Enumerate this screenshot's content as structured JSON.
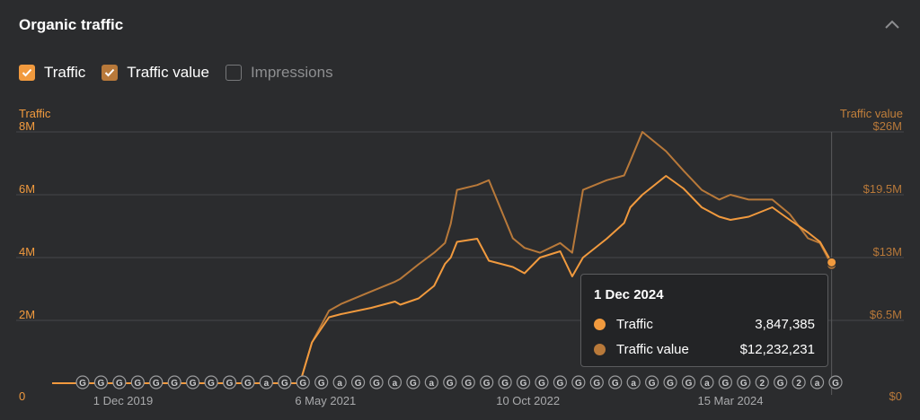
{
  "header": {
    "title": "Organic traffic"
  },
  "toggles": [
    {
      "label": "Traffic",
      "checked": true
    },
    {
      "label": "Traffic value",
      "checked": true
    },
    {
      "label": "Impressions",
      "checked": false
    }
  ],
  "colors": {
    "background": "#2b2c2e",
    "traffic": "#f19a3e",
    "traffic_value": "#b8793a",
    "grid": "#45464a",
    "annotation": "#9a9b9d"
  },
  "chart_data": {
    "type": "line",
    "left_axis_title": "Traffic",
    "right_axis_title": "Traffic value",
    "left_ticks": [
      {
        "value": 0,
        "label": "0"
      },
      {
        "value": 2000000,
        "label": "2M"
      },
      {
        "value": 4000000,
        "label": "4M"
      },
      {
        "value": 6000000,
        "label": "6M"
      },
      {
        "value": 8000000,
        "label": "8M"
      }
    ],
    "right_ticks": [
      {
        "value": 0,
        "label": "$0"
      },
      {
        "value": 6500000,
        "label": "$6.5M"
      },
      {
        "value": 13000000,
        "label": "$13M"
      },
      {
        "value": 19500000,
        "label": "$19.5M"
      },
      {
        "value": 26000000,
        "label": "$26M"
      }
    ],
    "ylim_left": [
      0,
      8000000
    ],
    "ylim_right": [
      0,
      26000000
    ],
    "x_ticks": [
      {
        "date": "2019-12-01",
        "label": "1 Dec 2019"
      },
      {
        "date": "2021-05-06",
        "label": "6 May 2021"
      },
      {
        "date": "2022-10-10",
        "label": "10 Oct 2022"
      },
      {
        "date": "2024-03-15",
        "label": "15 Mar 2024"
      }
    ],
    "xlim": [
      "2019-06-01",
      "2024-12-25"
    ],
    "grid": true,
    "series": [
      {
        "name": "Traffic",
        "axis": "left",
        "x": [
          "2019-06-01",
          "2020-06-01",
          "2021-01-01",
          "2021-03-01",
          "2021-04-01",
          "2021-05-15",
          "2021-06-15",
          "2021-09-01",
          "2021-11-01",
          "2021-11-15",
          "2022-01-01",
          "2022-02-10",
          "2022-03-10",
          "2022-03-25",
          "2022-04-10",
          "2022-06-01",
          "2022-07-01",
          "2022-09-01",
          "2022-10-01",
          "2022-11-10",
          "2023-01-01",
          "2023-02-01",
          "2023-03-01",
          "2023-05-01",
          "2023-06-15",
          "2023-07-01",
          "2023-08-01",
          "2023-10-01",
          "2023-11-15",
          "2024-01-01",
          "2024-02-15",
          "2024-03-15",
          "2024-05-01",
          "2024-07-01",
          "2024-08-15",
          "2024-10-01",
          "2024-11-01",
          "2024-12-01"
        ],
        "y": [
          0,
          0,
          0,
          0,
          1300000,
          2100000,
          2200000,
          2400000,
          2600000,
          2500000,
          2700000,
          3100000,
          3800000,
          4000000,
          4500000,
          4600000,
          3900000,
          3700000,
          3500000,
          4000000,
          4200000,
          3400000,
          4000000,
          4600000,
          5100000,
          5600000,
          6000000,
          6600000,
          6200000,
          5600000,
          5300000,
          5200000,
          5300000,
          5600000,
          5200000,
          4800000,
          4500000,
          3847385
        ]
      },
      {
        "name": "Traffic value",
        "axis": "right",
        "x": [
          "2019-06-01",
          "2020-06-01",
          "2021-01-01",
          "2021-03-01",
          "2021-04-01",
          "2021-05-15",
          "2021-06-15",
          "2021-09-01",
          "2021-11-01",
          "2021-11-15",
          "2022-01-01",
          "2022-02-10",
          "2022-03-10",
          "2022-03-25",
          "2022-04-10",
          "2022-06-01",
          "2022-07-01",
          "2022-09-01",
          "2022-10-01",
          "2022-11-10",
          "2023-01-01",
          "2023-02-01",
          "2023-03-01",
          "2023-05-01",
          "2023-06-15",
          "2023-07-01",
          "2023-08-01",
          "2023-10-01",
          "2023-11-15",
          "2024-01-01",
          "2024-02-15",
          "2024-03-15",
          "2024-05-01",
          "2024-07-01",
          "2024-08-15",
          "2024-10-01",
          "2024-11-01",
          "2024-12-01"
        ],
        "y": [
          0,
          0,
          0,
          0,
          4200000,
          7500000,
          8200000,
          9500000,
          10500000,
          10800000,
          12300000,
          13500000,
          14500000,
          16500000,
          20000000,
          20500000,
          21000000,
          15000000,
          14000000,
          13500000,
          14500000,
          13500000,
          20000000,
          21000000,
          21500000,
          23000000,
          26000000,
          24000000,
          22000000,
          20000000,
          19000000,
          19500000,
          19000000,
          19000000,
          17500000,
          15000000,
          14500000,
          12232231
        ]
      }
    ],
    "annotation_markers": [
      "G",
      "G",
      "G",
      "G",
      "G",
      "G",
      "G",
      "G",
      "G",
      "G",
      "a",
      "G",
      "G",
      "G",
      "a",
      "G",
      "G",
      "a",
      "G",
      "a",
      "G",
      "G",
      "G",
      "G",
      "G",
      "G",
      "G",
      "G",
      "G",
      "G",
      "a",
      "G",
      "G",
      "G",
      "a",
      "G",
      "G",
      "2",
      "G",
      "2",
      "a",
      "G"
    ],
    "tooltip": {
      "date": "1 Dec 2024",
      "rows": [
        {
          "name": "Traffic",
          "value": "3,847,385"
        },
        {
          "name": "Traffic value",
          "value": "$12,232,231"
        }
      ]
    }
  }
}
